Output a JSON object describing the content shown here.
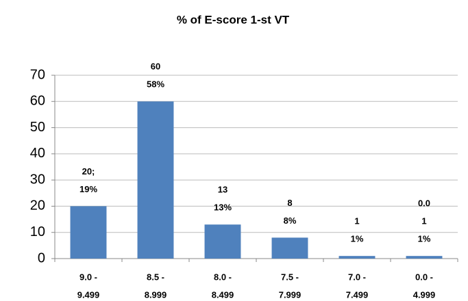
{
  "chart_data": {
    "type": "bar",
    "title": "% of E-score 1-st VT",
    "categories": [
      [
        "9.0 -",
        "9.499"
      ],
      [
        "8.5 -",
        "8.999"
      ],
      [
        "8.0 -",
        "8.499"
      ],
      [
        "7.5 -",
        "7.999"
      ],
      [
        "7.0 -",
        "7.499"
      ],
      [
        "0.0 -",
        "4.999"
      ]
    ],
    "values": [
      20,
      60,
      13,
      8,
      1,
      1
    ],
    "value_labels": [
      [
        "20;",
        "19%"
      ],
      [
        "60",
        "58%"
      ],
      [
        "13",
        "13%"
      ],
      [
        "8",
        "8%"
      ],
      [
        "1",
        "1%"
      ],
      [
        "0.0",
        "1",
        "1%"
      ]
    ],
    "color": "#4f81bd",
    "ylim": [
      0,
      70
    ],
    "yticks": [
      0,
      10,
      20,
      30,
      40,
      50,
      60,
      70
    ],
    "grid": true
  }
}
